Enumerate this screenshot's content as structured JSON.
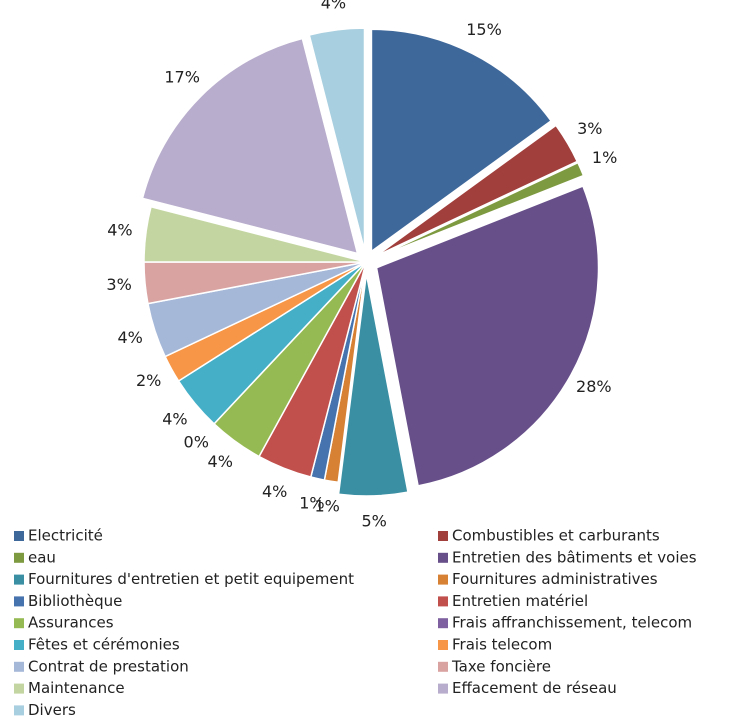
{
  "chart_data": {
    "type": "pie",
    "categories": [
      "Electricité",
      "Combustibles et carburants",
      "eau",
      "Entretien des bâtiments et voies",
      "Fournitures d'entretien et petit equipement",
      "Fournitures administratives",
      "Bibliothèque",
      "Entretien matériel",
      "Assurances",
      "Frais affranchissement, telecom",
      "Fêtes et cérémonies",
      "Frais telecom",
      "Contrat de prestation",
      "Taxe foncière",
      "Maintenance",
      "Effacement de réseau",
      "Divers"
    ],
    "values": [
      15,
      3,
      1,
      28,
      5,
      1,
      1,
      4,
      4,
      0,
      4,
      2,
      4,
      3,
      4,
      17,
      4
    ],
    "value_labels": [
      "15%",
      "3%",
      "1%",
      "28%",
      "5%",
      "1%",
      "1%",
      "4%",
      "4%",
      "0%",
      "4%",
      "2%",
      "4%",
      "3%",
      "4%",
      "17%",
      "4%"
    ],
    "colors": [
      "#3f689a",
      "#a03f3c",
      "#7e9a40",
      "#674f8a",
      "#3a8fa3",
      "#d68134",
      "#4673ae",
      "#c1504c",
      "#96ba53",
      "#7e60a0",
      "#45afc8",
      "#f79646",
      "#a6b8d8",
      "#d9a3a2",
      "#c3d6a1",
      "#b8adcc",
      "#a8cfdf"
    ],
    "explode": [
      true,
      true,
      true,
      true,
      true,
      false,
      false,
      false,
      false,
      false,
      false,
      false,
      false,
      false,
      false,
      true,
      true
    ],
    "legend": "bottom"
  }
}
